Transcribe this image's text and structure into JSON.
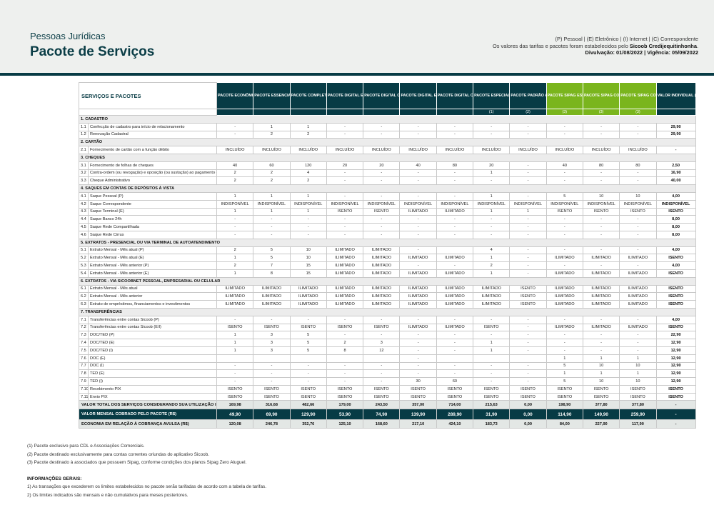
{
  "header": {
    "subtitle": "Pessoas Jurídicas",
    "title": "Pacote de Serviços",
    "legend_line1": "(P) Pessoal | (E) Eletrônico | (I) Internet | (C) Correspondente",
    "legend_line2_prefix": "Os valores das tarifas e pacotes foram estabelecidos pelo ",
    "legend_line2_bold": "Sicoob Credijequitinhonha",
    "legend_line2_suffix": ".",
    "legend_line3": "Divulvação: 01/08/2022 | Vigência: 05/09/2022"
  },
  "colors": {
    "dark_teal": "#073b45",
    "green": "#7ab51d",
    "section_gray": "#ececec"
  },
  "table": {
    "corner_label": "SERVIÇOS E PACOTES",
    "columns": [
      {
        "label": "PACOTE ECONÔMICO",
        "marker": "",
        "green": false
      },
      {
        "label": "PACOTE ESSENCIAL",
        "marker": "",
        "green": false
      },
      {
        "label": "PACOTE COMPLETO",
        "marker": "",
        "green": false
      },
      {
        "label": "PACOTE DIGITAL ESSENCIAL",
        "marker": "",
        "green": false
      },
      {
        "label": "PACOTE DIGITAL COMPLETO",
        "marker": "",
        "green": false
      },
      {
        "label": "PACOTE DIGITAL ESSENCIAL INTERNET",
        "marker": "",
        "green": false
      },
      {
        "label": "PACOTE DIGITAL COMPLETO INTERNET",
        "marker": "",
        "green": false
      },
      {
        "label": "PACOTE ESPECIAL CDL / ASSOCIAÇÃO COMERCIAL",
        "marker": "(1)",
        "green": false
      },
      {
        "label": "PACOTE PADRÃO ASSOCIAÇÃO DIGITAL PJ",
        "marker": "(2)",
        "green": false
      },
      {
        "label": "PACOTE SIPAG ESSENCIAL",
        "marker": "(3)",
        "green": true
      },
      {
        "label": "PACOTE SIPAG COMPLETO",
        "marker": "(3)",
        "green": true
      },
      {
        "label": "PACOTE SIPAG COMPLETO MAIS",
        "marker": "(3)",
        "green": true
      },
      {
        "label": "VALOR INDIVIDUAL (R$)",
        "marker": "",
        "green": false
      }
    ],
    "sections": [
      {
        "title": "1. CADASTRO",
        "rows": [
          {
            "num": "1.1",
            "desc": "Confecção de cadastro para início de relacionamento",
            "values": [
              "-",
              "1",
              "1",
              "-",
              "-",
              "-",
              "-",
              "-",
              "-",
              "-",
              "-",
              "-",
              "29,90"
            ]
          },
          {
            "num": "1.2",
            "desc": "Renovação Cadastral",
            "values": [
              "-",
              "2",
              "2",
              "-",
              "-",
              "-",
              "-",
              "-",
              "-",
              "-",
              "-",
              "-",
              "29,90"
            ]
          }
        ]
      },
      {
        "title": "2. CARTÃO",
        "rows": [
          {
            "num": "2.1",
            "desc": "Fornecimento de cartão com a função débito",
            "values": [
              "INCLUÍDO",
              "INCLUÍDO",
              "INCLUÍDO",
              "INCLUÍDO",
              "INCLUÍDO",
              "INCLUÍDO",
              "INCLUÍDO",
              "INCLUÍDO",
              "INCLUÍDO",
              "INCLUÍDO",
              "INCLUÍDO",
              "INCLUÍDO",
              "-"
            ]
          }
        ]
      },
      {
        "title": "3. CHEQUES",
        "rows": [
          {
            "num": "3.1",
            "desc": "Fornecimento de folhas de cheques",
            "values": [
              "40",
              "60",
              "120",
              "20",
              "20",
              "40",
              "80",
              "20",
              "-",
              "40",
              "80",
              "80",
              "2,50"
            ]
          },
          {
            "num": "3.2",
            "desc": "Contra-ordem (ou revogação) e oposição (ou sustação) ao pagamento de cheque",
            "values": [
              "2",
              "2",
              "4",
              "-",
              "-",
              "-",
              "-",
              "1",
              "-",
              "-",
              "-",
              "-",
              "16,90"
            ]
          },
          {
            "num": "3.3",
            "desc": "Cheque Administrativo",
            "values": [
              "2",
              "2",
              "2",
              "-",
              "-",
              "-",
              "-",
              "-",
              "-",
              "-",
              "-",
              "-",
              "40,00"
            ]
          }
        ]
      },
      {
        "title": "4. SAQUES EM CONTAS DE DEPÓSITOS À VISTA",
        "rows": [
          {
            "num": "4.1",
            "desc": "Saque Pessoal (P)",
            "values": [
              "1",
              "1",
              "1",
              "-",
              "-",
              "-",
              "-",
              "1",
              "-",
              "5",
              "10",
              "10",
              "4,00"
            ]
          },
          {
            "num": "4.2",
            "desc": "Saque Correspondente",
            "values": [
              "INDISPONÍVEL",
              "INDISPONÍVEL",
              "INDISPONÍVEL",
              "INDISPONÍVEL",
              "INDISPONÍVEL",
              "INDISPONÍVEL",
              "INDISPONÍVEL",
              "INDISPONÍVEL",
              "INDISPONÍVEL",
              "INDISPONÍVEL",
              "INDISPONÍVEL",
              "INDISPONÍVEL",
              "INDISPONÍVEL"
            ]
          },
          {
            "num": "4.3",
            "desc": "Saque Terminal (E)",
            "values": [
              "1",
              "1",
              "1",
              "ISENTO",
              "ISENTO",
              "ILIMITADO",
              "ILIMITADO",
              "1",
              "1",
              "ISENTO",
              "ISENTO",
              "ISENTO",
              "ISENTO"
            ]
          },
          {
            "num": "4.4",
            "desc": "Saque Banco 24h",
            "values": [
              "-",
              "-",
              "-",
              "-",
              "-",
              "-",
              "-",
              "-",
              "-",
              "-",
              "-",
              "-",
              "8,00"
            ]
          },
          {
            "num": "4.5",
            "desc": "Saque Rede Compartilhada",
            "values": [
              "-",
              "-",
              "-",
              "-",
              "-",
              "-",
              "-",
              "-",
              "-",
              "-",
              "-",
              "-",
              "8,00"
            ]
          },
          {
            "num": "4.6",
            "desc": "Saque Rede Cirrus",
            "values": [
              "-",
              "-",
              "-",
              "-",
              "-",
              "-",
              "-",
              "-",
              "-",
              "-",
              "-",
              "-",
              "8,00"
            ]
          }
        ]
      },
      {
        "title": "5. EXTRATOS - PRESENCIAL OU VIA TERMINAL DE AUTOATENDIMENTO",
        "rows": [
          {
            "num": "5.1",
            "desc": "Extrato Mensal - Mês atual (P)",
            "values": [
              "2",
              "5",
              "10",
              "ILIMITADO",
              "ILIMITADO",
              "-",
              "",
              "4",
              "-",
              "-",
              "-",
              "-",
              "4,00"
            ]
          },
          {
            "num": "5.2",
            "desc": "Extrato Mensal - Mês atual (E)",
            "values": [
              "1",
              "5",
              "10",
              "ILIMITADO",
              "ILIMITADO",
              "ILIMITADO",
              "ILIMITADO",
              "1",
              "-",
              "ILIMITADO",
              "ILIMITADO",
              "ILIMITADO",
              "ISENTO"
            ]
          },
          {
            "num": "5.3",
            "desc": "Extrato Mensal - Mês anterior (P)",
            "values": [
              "2",
              "7",
              "15",
              "ILIMITADO",
              "ILIMITADO",
              "-",
              "-",
              "2",
              "-",
              "-",
              "-",
              "-",
              "4,00"
            ]
          },
          {
            "num": "5.4",
            "desc": "Extrato Mensal - Mês anterior (E)",
            "values": [
              "1",
              "8",
              "15",
              "ILIMITADO",
              "ILIMITADO",
              "ILIMITADO",
              "ILIMITADO",
              "1",
              "-",
              "ILIMITADO",
              "ILIMITADO",
              "ILIMITADO",
              "ISENTO"
            ]
          }
        ]
      },
      {
        "title": "6. EXTRATOS - VIA SICOOBNET PESSOAL, EMPRESARIAL OU CELULAR",
        "rows": [
          {
            "num": "6.1",
            "desc": "Extrato Mensal - Mês atual",
            "values": [
              "ILIMITADO",
              "ILIMITADO",
              "ILIMITADO",
              "ILIMITADO",
              "ILIMITADO",
              "ILIMITADO",
              "ILIMITADO",
              "ILIMITADO",
              "ISENTO",
              "ILIMITADO",
              "ILIMITADO",
              "ILIMITADO",
              "ISENTO"
            ]
          },
          {
            "num": "6.2",
            "desc": "Extrato Mensal - Mês anterior",
            "values": [
              "ILIMITADO",
              "ILIMITADO",
              "ILIMITADO",
              "ILIMITADO",
              "ILIMITADO",
              "ILIMITADO",
              "ILIMITADO",
              "ILIMITADO",
              "ISENTO",
              "ILIMITADO",
              "ILIMITADO",
              "ILIMITADO",
              "ISENTO"
            ]
          },
          {
            "num": "6.3",
            "desc": "Extrato de empréstimos, financiamentos e investimentos",
            "values": [
              "ILIMITADO",
              "ILIMITADO",
              "ILIMITADO",
              "ILIMITADO",
              "ILIMITADO",
              "ILIMITADO",
              "ILIMITADO",
              "ILIMITADO",
              "ISENTO",
              "ILIMITADO",
              "ILIMITADO",
              "ILIMITADO",
              "ISENTO"
            ]
          }
        ]
      },
      {
        "title": "7. TRANSFERÊNCIAS",
        "rows": [
          {
            "num": "7.1",
            "desc": "Transferências entre contas Sicoob (P)",
            "values": [
              "-",
              "-",
              "-",
              "-",
              "-",
              "-",
              "-",
              "-",
              "-",
              "-",
              "-",
              "-",
              "4,00"
            ]
          },
          {
            "num": "7.2",
            "desc": "Transferências entre contas Sicoob (E/I)",
            "values": [
              "ISENTO",
              "ISENTO",
              "ISENTO",
              "ISENTO",
              "ISENTO",
              "ILIMITADO",
              "ILIMITADO",
              "ISENTO",
              "-",
              "ILIMITADO",
              "ILIMITADO",
              "ILIMITADO",
              "ISENTO"
            ]
          },
          {
            "num": "7.3",
            "desc": "DOC/TED (P)",
            "values": [
              "1",
              "3",
              "5",
              "-",
              "-",
              "-",
              "-",
              "-",
              "-",
              "-",
              "-",
              "-",
              "22,90"
            ]
          },
          {
            "num": "7.4",
            "desc": "DOC/TED (E)",
            "values": [
              "1",
              "3",
              "5",
              "2",
              "3",
              "-",
              "-",
              "1",
              "-",
              "-",
              "-",
              "-",
              "12,90"
            ]
          },
          {
            "num": "7.5",
            "desc": "DOC/TED (I)",
            "values": [
              "1",
              "3",
              "5",
              "8",
              "12",
              "-",
              "-",
              "1",
              "-",
              "-",
              "-",
              "-",
              "12,90"
            ]
          },
          {
            "num": "7.6",
            "desc": "DOC (E)",
            "values": [
              "",
              "",
              "",
              "",
              "",
              "-",
              "",
              "",
              "",
              "1",
              "1",
              "1",
              "12,90"
            ]
          },
          {
            "num": "7.7",
            "desc": "DOC (I)",
            "values": [
              "-",
              "-",
              "-",
              "-",
              "-",
              "-",
              "-",
              "-",
              "-",
              "5",
              "10",
              "10",
              "12,90"
            ]
          },
          {
            "num": "7.8",
            "desc": "TED (E)",
            "values": [
              "-",
              "-",
              "-",
              "-",
              "-",
              "-",
              "-",
              "-",
              "-",
              "1",
              "1",
              "1",
              "12,90"
            ]
          },
          {
            "num": "7.9",
            "desc": "TED (I)",
            "values": [
              "-",
              "-",
              "-",
              "-",
              "-",
              "30",
              "60",
              "-",
              "-",
              "5",
              "10",
              "10",
              "12,90"
            ]
          },
          {
            "num": "7.10",
            "desc": "Recebimento PIX",
            "values": [
              "ISENTO",
              "ISENTO",
              "ISENTO",
              "ISENTO",
              "ISENTO",
              "ISENTO",
              "ISENTO",
              "ISENTO",
              "ISENTO",
              "ISENTO",
              "ISENTO",
              "ISENTO",
              "ISENTO"
            ]
          },
          {
            "num": "7.11",
            "desc": "Envio PIX",
            "values": [
              "ISENTO",
              "ISENTO",
              "ISENTO",
              "ISENTO",
              "ISENTO",
              "ISENTO",
              "ISENTO",
              "ISENTO",
              "ISENTO",
              "ISENTO",
              "ISENTO",
              "ISENTO",
              "ISENTO"
            ]
          }
        ]
      }
    ],
    "totals": [
      {
        "label": "VALOR TOTAL DOS SERVIÇOS CONSIDERANDO SUA UTILIZAÇÃO INDIVIDUAL (R$)",
        "dark": false,
        "values": [
          "169,98",
          "316,68",
          "482,66",
          "179,00",
          "243,50",
          "357,00",
          "714,00",
          "215,63",
          "0,00",
          "198,90",
          "377,80",
          "377,80",
          "-"
        ]
      },
      {
        "label": "VALOR MENSAL COBRADO PELO PACOTE (R$)",
        "dark": true,
        "values": [
          "49,90",
          "69,90",
          "129,90",
          "53,90",
          "74,90",
          "139,90",
          "289,90",
          "31,90",
          "0,00",
          "114,90",
          "149,90",
          "259,90",
          "-"
        ]
      },
      {
        "label": "ECONOMIA EM RELAÇÃO À COBRANÇA AVULSA (R$)",
        "dark": false,
        "values": [
          "120,08",
          "246,78",
          "352,76",
          "125,10",
          "168,60",
          "217,10",
          "424,10",
          "183,73",
          "0,00",
          "84,00",
          "227,90",
          "117,90",
          "-"
        ]
      }
    ]
  },
  "notes": {
    "footnotes": [
      "(1) Pacote exclusivo para CDL e Associações Comerciais.",
      "(2) Pacote destinado exclusivamente para contas correntes oriundas do aplicativo Sicoob.",
      "(3) Pacote destinado à associados que possuem Sipag, conforme condições dos planos Sipag Zero Aluguel."
    ],
    "general_title": "INFORMAÇÕES GERAIS:",
    "general": [
      "1) As transações que excederem os limites estabelecidos no pacote serão tarifadas de acordo com a tabela de tarifas.",
      "2) Os limites indicados são mensais e não cumulativos para meses posteriores."
    ]
  }
}
